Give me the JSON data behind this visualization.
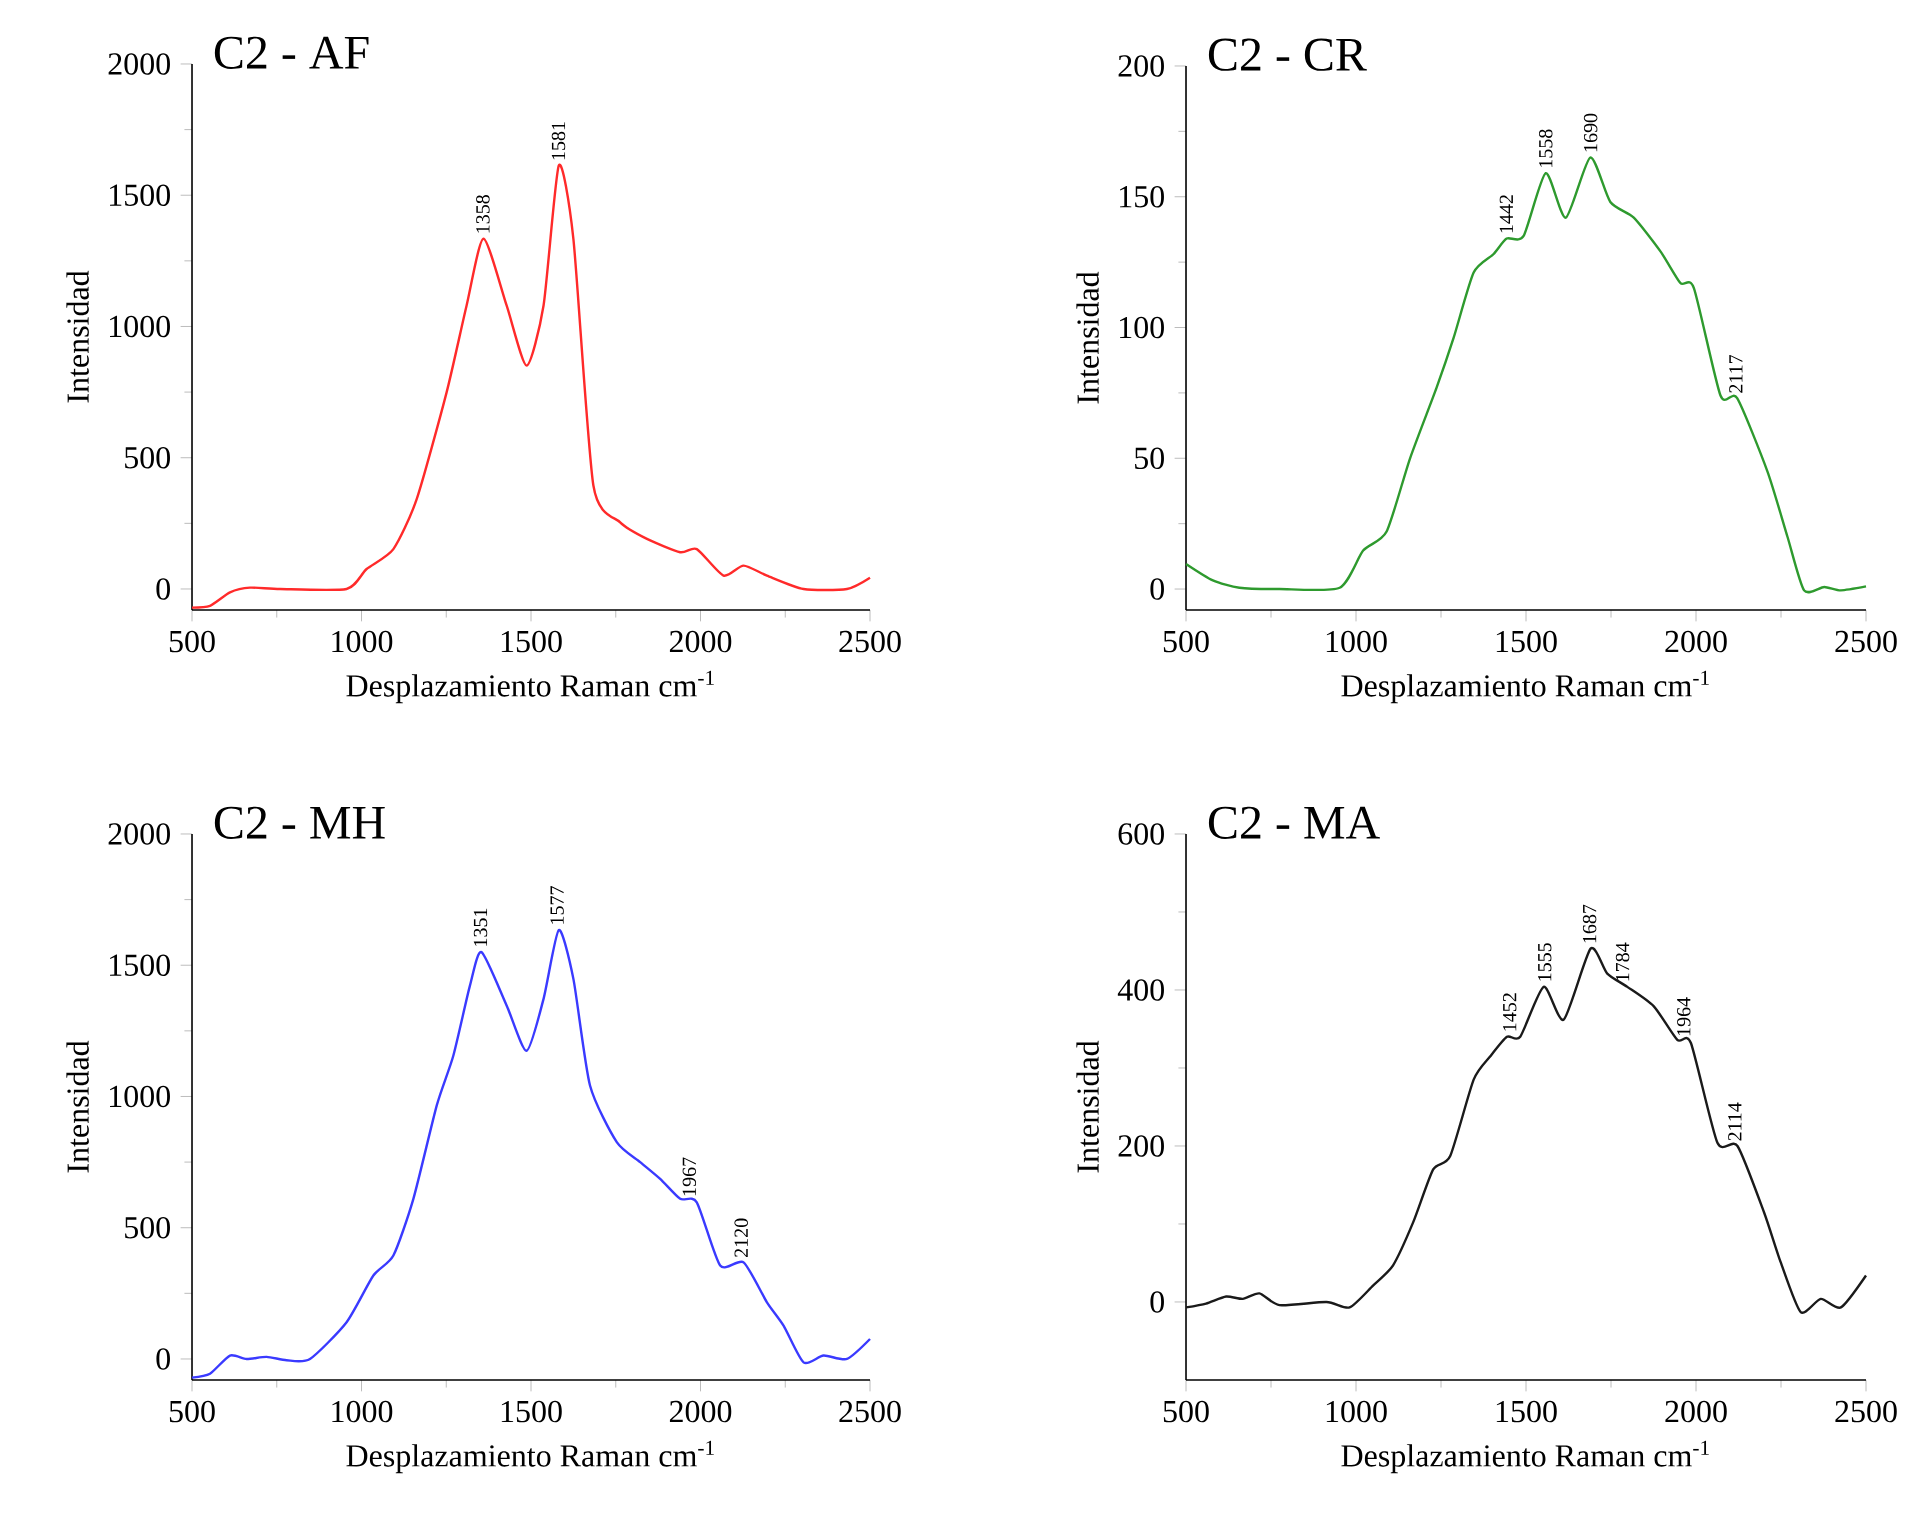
{
  "chart_data": [
    {
      "type": "line",
      "title": "C2 - AF",
      "xlabel": "Desplazamiento Raman cm$^{-1}$",
      "ylabel": "Intensidad",
      "color": "#ff2a2a",
      "x": [
        500,
        553,
        612,
        671,
        760,
        956,
        1015,
        1094,
        1163,
        1251,
        1310,
        1360,
        1428,
        1487,
        1537,
        1582,
        1625,
        1684,
        1763,
        1842,
        1940,
        1989,
        2068,
        2127,
        2196,
        2304,
        2432,
        2500
      ],
      "values": [
        -71,
        -64,
        -13,
        5,
        0,
        0,
        76,
        152,
        343,
        749,
        1080,
        1334,
        1080,
        851,
        1080,
        1613,
        1334,
        394,
        254,
        191,
        140,
        152,
        51,
        89,
        51,
        0,
        0,
        43
      ],
      "xlim": [
        500,
        2500
      ],
      "ylim": [
        -80,
        2000
      ],
      "xticks": [
        500,
        1000,
        1500,
        2000,
        2500
      ],
      "yticks": [
        0,
        500,
        1000,
        1500,
        2000
      ],
      "annotations": [
        {
          "text": "1358",
          "x": 1358,
          "y": 1334
        },
        {
          "text": "1581",
          "x": 1581,
          "y": 1613
        }
      ]
    },
    {
      "type": "line",
      "title": "C2 - CR",
      "xlabel": "Desplazamiento Raman cm$^{-1}$",
      "ylabel": "Intensidad",
      "color": "#2e9a2e",
      "x": [
        500,
        579,
        657,
        775,
        952,
        1021,
        1090,
        1159,
        1237,
        1287,
        1346,
        1404,
        1443,
        1493,
        1558,
        1617,
        1689,
        1748,
        1817,
        1896,
        1954,
        1994,
        2072,
        2121,
        2210,
        2269,
        2318,
        2377,
        2426,
        2500
      ],
      "values": [
        9.6,
        3.3,
        0.5,
        0,
        0.5,
        14.7,
        22,
        50,
        77,
        96,
        121,
        128,
        134,
        135,
        159,
        142,
        165,
        148,
        142,
        129,
        117,
        115,
        74,
        73,
        45,
        20,
        -0.5,
        0.8,
        -0.5,
        1
      ],
      "xlim": [
        500,
        2500
      ],
      "ylim": [
        -8,
        200
      ],
      "xticks": [
        500,
        1000,
        1500,
        2000,
        2500
      ],
      "yticks": [
        0,
        50,
        100,
        150,
        200
      ],
      "annotations": [
        {
          "text": "1442",
          "x": 1442,
          "y": 134
        },
        {
          "text": "1558",
          "x": 1558,
          "y": 159
        },
        {
          "text": "1690",
          "x": 1690,
          "y": 165
        },
        {
          "text": "2117",
          "x": 2117,
          "y": 73
        }
      ]
    },
    {
      "type": "line",
      "title": "C2 - MH",
      "xlabel": "Desplazamiento Raman cm$^{-1}$",
      "ylabel": "Intensidad",
      "color": "#3a3aff",
      "x": [
        500,
        553,
        612,
        661,
        720,
        779,
        848,
        956,
        1035,
        1094,
        1153,
        1222,
        1271,
        1320,
        1354,
        1428,
        1487,
        1537,
        1582,
        1625,
        1674,
        1753,
        1822,
        1881,
        1940,
        1989,
        2058,
        2127,
        2196,
        2245,
        2304,
        2363,
        2432,
        2500
      ],
      "values": [
        -71,
        -56,
        13,
        0,
        8,
        -5,
        0,
        140,
        318,
        394,
        610,
        966,
        1156,
        1423,
        1550,
        1347,
        1174,
        1372,
        1634,
        1448,
        1042,
        826,
        750,
        686,
        610,
        597,
        356,
        368,
        216,
        127,
        -13,
        13,
        0,
        76
      ],
      "xlim": [
        500,
        2500
      ],
      "ylim": [
        -80,
        2000
      ],
      "xticks": [
        500,
        1000,
        1500,
        2000,
        2500
      ],
      "yticks": [
        0,
        500,
        1000,
        1500,
        2000
      ],
      "annotations": [
        {
          "text": "1351",
          "x": 1351,
          "y": 1550
        },
        {
          "text": "1577",
          "x": 1577,
          "y": 1634
        },
        {
          "text": "1967",
          "x": 1967,
          "y": 600
        },
        {
          "text": "2120",
          "x": 2120,
          "y": 368
        }
      ]
    },
    {
      "type": "line",
      "title": "C2 - MA",
      "xlabel": "Desplazamiento Raman cm$^{-1}$",
      "ylabel": "Intensidad",
      "color": "#1a1a1a",
      "x": [
        500,
        559,
        618,
        667,
        716,
        775,
        913,
        981,
        1050,
        1109,
        1168,
        1227,
        1277,
        1346,
        1395,
        1444,
        1483,
        1552,
        1611,
        1690,
        1739,
        1798,
        1876,
        1945,
        1985,
        2063,
        2122,
        2200,
        2249,
        2308,
        2367,
        2426,
        2500
      ],
      "values": [
        -7,
        -2,
        7,
        4,
        11,
        -4,
        0,
        -7,
        21,
        47,
        102,
        170,
        187,
        285,
        315,
        340,
        340,
        404,
        362,
        453,
        421,
        404,
        379,
        336,
        332,
        204,
        200,
        115,
        51,
        -13,
        4,
        -7,
        34
      ],
      "xlim": [
        500,
        2500
      ],
      "ylim": [
        -100,
        600
      ],
      "xticks": [
        500,
        1000,
        1500,
        2000,
        2500
      ],
      "yticks": [
        0,
        200,
        400,
        600
      ],
      "annotations": [
        {
          "text": "1452",
          "x": 1452,
          "y": 340
        },
        {
          "text": "1555",
          "x": 1555,
          "y": 404
        },
        {
          "text": "1687",
          "x": 1687,
          "y": 453
        },
        {
          "text": "1784",
          "x": 1784,
          "y": 404
        },
        {
          "text": "1964",
          "x": 1964,
          "y": 334
        },
        {
          "text": "2114",
          "x": 2114,
          "y": 200
        }
      ]
    }
  ]
}
